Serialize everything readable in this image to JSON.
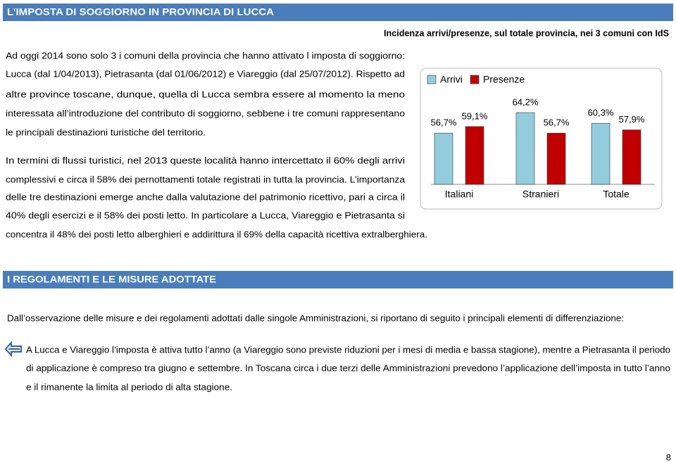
{
  "sections": [
    {
      "title": "L’IMPOSTA DI SOGGIORNO IN PROVINCIA DI LUCCA",
      "paragraphs": [
        [
          "Ad oggi 2014 sono solo 3 i comuni della provincia che hanno attivato l imposta di soggiorno:",
          "Lucca (dal 1/04/2013), Pietrasanta (dal 01/06/2012) e Viareggio (dal 25/07/2012). Rispetto ad",
          "altre province toscane, dunque, quella di Lucca sembra essere al momento la meno",
          "interessata all’introduzione del contributo di soggiorno, sebbene i tre comuni rappresentano",
          "le principali destinazioni turistiche del territorio."
        ],
        [
          "In termini di flussi turistici, nel 2013 queste località hanno intercettato il 60% degli arrivi",
          "complessivi e circa il 58% dei pernottamenti totale registrati in tutta la provincia. L’importanza",
          "delle tre destinazioni emerge anche dalla valutazione del patrimonio ricettivo, pari a circa il",
          "40% degli esercizi e il 58% dei posti letto. In particolare a Lucca, Viareggio e Pietrasanta si",
          "concentra il 48% dei posti letto alberghieri e addirittura il 69% della capacità ricettiva extralberghiera."
        ]
      ]
    },
    {
      "title": "I REGOLAMENTI E LE MISURE ADOTTATE",
      "paragraphs": [
        [
          "Dall’osservazione delle misure e dei regolamenti adottati dalle singole Amministrazioni, si riportano di seguito i principali elementi di differenziazione:"
        ]
      ],
      "bullets": [
        [
          "A Lucca e Viareggio l’imposta è attiva tutto l’anno (a Viareggio sono previste riduzioni per i mesi di media e bassa stagione), mentre a Pietrasanta il periodo",
          "di applicazione è compreso tra giugno e settembre. In Toscana circa i due terzi delle Amministrazioni prevedono l’applicazione dell’imposta in tutto l’anno",
          "e il rimanente la limita al periodo di alta stagione."
        ]
      ]
    }
  ],
  "chart_data": {
    "type": "bar",
    "title": "Incidenza arrivi/presenze, sul totale provincia, nei 3 comuni con IdS",
    "categories": [
      "Italiani",
      "Stranieri",
      "Totale"
    ],
    "series": [
      {
        "name": "Arrivi",
        "color": "#93CDDD",
        "values": [
          56.7,
          64.2,
          60.3
        ],
        "value_labels": [
          "56,7%",
          "64,2%",
          "60,3%"
        ]
      },
      {
        "name": "Presenze",
        "color": "#C00000",
        "values": [
          59.1,
          56.7,
          57.9
        ],
        "value_labels": [
          "59,1%",
          "56,7%",
          "57,9%"
        ]
      }
    ],
    "ylim": [
      38,
      66
    ]
  },
  "page_number": "8"
}
